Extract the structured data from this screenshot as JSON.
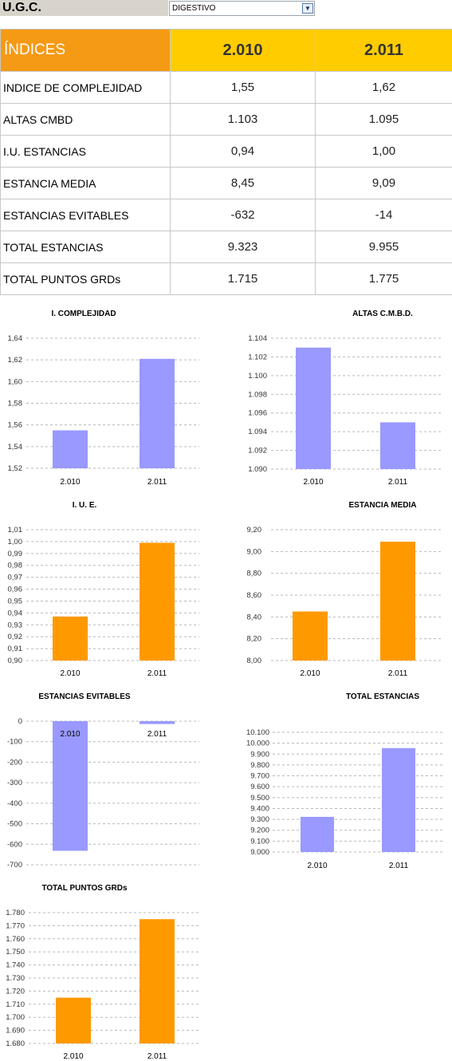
{
  "header": {
    "ugc_label": "U.G.C.",
    "ugc_value": "DIGESTIVO",
    "dropdown_icon": "chevron-down-icon"
  },
  "table": {
    "columns": [
      "ÍNDICES",
      "2.010",
      "2.011"
    ],
    "rows": [
      {
        "label": "INDICE DE COMPLEJIDAD",
        "v2010": "1,55",
        "v2011": "1,62"
      },
      {
        "label": "ALTAS CMBD",
        "v2010": "1.103",
        "v2011": "1.095"
      },
      {
        "label": "I.U. ESTANCIAS",
        "v2010": "0,94",
        "v2011": "1,00"
      },
      {
        "label": "ESTANCIA MEDIA",
        "v2010": "8,45",
        "v2011": "9,09"
      },
      {
        "label": "ESTANCIAS EVITABLES",
        "v2010": "-632",
        "v2011": "-14"
      },
      {
        "label": "TOTAL ESTANCIAS",
        "v2010": "9.323",
        "v2011": "9.955"
      },
      {
        "label": "TOTAL PUNTOS GRDs",
        "v2010": "1.715",
        "v2011": "1.775"
      }
    ],
    "colors": {
      "header_left": "#f59a14",
      "header_years": "#ffcc00"
    }
  },
  "chart_data": [
    {
      "type": "bar",
      "title": "I. COMPLEJIDAD",
      "categories": [
        "2.010",
        "2.011"
      ],
      "values": [
        1.555,
        1.621
      ],
      "ylim": [
        1.52,
        1.64
      ],
      "yticks": [
        "1,52",
        "1,54",
        "1,56",
        "1,58",
        "1,60",
        "1,62",
        "1,64"
      ],
      "color": "#9999ff",
      "grid": true
    },
    {
      "type": "bar",
      "title": "ALTAS C.M.B.D.",
      "categories": [
        "2.010",
        "2.011"
      ],
      "values": [
        1.103,
        1.095
      ],
      "ylim": [
        1.09,
        1.104
      ],
      "yticks": [
        "1.090",
        "1.092",
        "1.094",
        "1.096",
        "1.098",
        "1.100",
        "1.102",
        "1.104"
      ],
      "color": "#9999ff",
      "grid": true
    },
    {
      "type": "bar",
      "title": "I. U. E.",
      "categories": [
        "2.010",
        "2.011"
      ],
      "values": [
        0.937,
        0.999
      ],
      "ylim": [
        0.9,
        1.01
      ],
      "yticks": [
        "0,90",
        "0,91",
        "0,92",
        "0,93",
        "0,94",
        "0,95",
        "0,96",
        "0,97",
        "0,98",
        "0,99",
        "1,00",
        "1,01"
      ],
      "color": "#ff9900",
      "grid": true
    },
    {
      "type": "bar",
      "title": "ESTANCIA MEDIA",
      "categories": [
        "2.010",
        "2.011"
      ],
      "values": [
        8.45,
        9.09
      ],
      "ylim": [
        8.0,
        9.2
      ],
      "yticks": [
        "8,00",
        "8,20",
        "8,40",
        "8,60",
        "8,80",
        "9,00",
        "9,20"
      ],
      "color": "#ff9900",
      "grid": true
    },
    {
      "type": "bar",
      "title": "ESTANCIAS EVITABLES",
      "categories": [
        "2.010",
        "2.011"
      ],
      "values": [
        -632,
        -14
      ],
      "ylim": [
        -700,
        0
      ],
      "yticks": [
        "-700",
        "-600",
        "-500",
        "-400",
        "-300",
        "-200",
        "-100",
        "0"
      ],
      "color": "#9999ff",
      "grid": true
    },
    {
      "type": "bar",
      "title": "TOTAL ESTANCIAS",
      "categories": [
        "2.010",
        "2.011"
      ],
      "values": [
        9323,
        9955
      ],
      "ylim": [
        9000,
        10100
      ],
      "yticks": [
        "9.000",
        "9.100",
        "9.200",
        "9.300",
        "9.400",
        "9.500",
        "9.600",
        "9.700",
        "9.800",
        "9.900",
        "10.000",
        "10.100"
      ],
      "color": "#9999ff",
      "grid": true
    },
    {
      "type": "bar",
      "title": "TOTAL PUNTOS GRDs",
      "categories": [
        "2.010",
        "2.011"
      ],
      "values": [
        1715,
        1775
      ],
      "ylim": [
        1680,
        1780
      ],
      "yticks": [
        "1.680",
        "1.690",
        "1.700",
        "1.710",
        "1.720",
        "1.730",
        "1.740",
        "1.750",
        "1.760",
        "1.770",
        "1.780"
      ],
      "color": "#ff9900",
      "grid": true
    }
  ]
}
